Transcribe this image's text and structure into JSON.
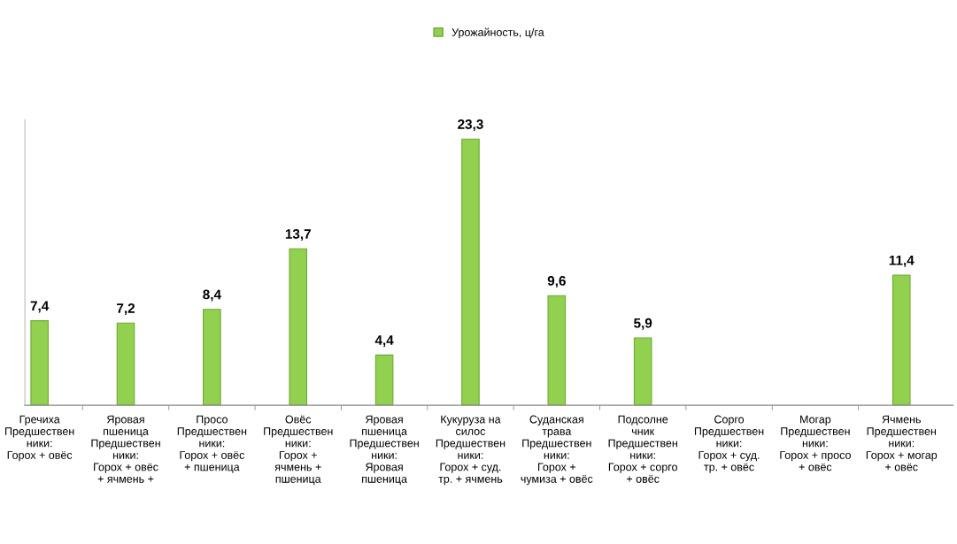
{
  "chart_data": {
    "type": "bar",
    "categories": [
      "Гречиха\nПредшествен\nники:\nГорох + овёс",
      "Яровая\nпшеница\nПредшествен\nники:\nГорох + овёс\n+ ячмень +",
      "Просо\nПредшествен\nники:\nГорох + овёс\n+ пшеница",
      "Овёс\nПредшествен\nники:\nГорох +\nячмень +\nпшеница",
      "Яровая\nпшеница\nПредшествен\nники:\nЯровая\nпшеница",
      "Кукуруза на\nсилос\nПредшествен\nники:\nГорох + суд.\nтр. + ячмень",
      "Суданская\nтрава\nПредшествен\nники:\nГорох +\nчумиза + овёс",
      "Подсолне\nчник\nПредшествен\nники:\nГорох + сорго\n+ овёс",
      "Сорго\nПредшествен\nники:\nГорох + суд.\nтр. + овёс",
      "Могар\nПредшествен\nники:\nГорох + просо\n+ овёс",
      "Ячмень\nПредшествен\nники:\nГорох + могар\n+ овёс"
    ],
    "series": [
      {
        "name": "Урожайность, ц/га",
        "color": "#92d050",
        "values": [
          7.4,
          7.2,
          8.4,
          13.7,
          4.4,
          23.3,
          9.6,
          5.9,
          null,
          null,
          11.4
        ],
        "value_labels": [
          "7,4",
          "7,2",
          "8,4",
          "13,7",
          "4,4",
          "23,3",
          "9,6",
          "5,9",
          null,
          null,
          "11,4"
        ]
      }
    ],
    "ylim": [
      0,
      25
    ],
    "tick_labels": "x",
    "legend": "top",
    "grid": false
  }
}
